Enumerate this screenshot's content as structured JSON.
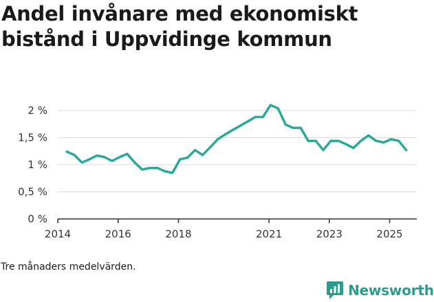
{
  "title": "Andel invånare med ekonomiskt bistånd i Uppvidinge kommun",
  "footnote": "Tre månaders medelvärden.",
  "brand": {
    "name": "Newsworthy",
    "icon": "bar-chart-logo-icon",
    "color": "#2a9d8f"
  },
  "colors": {
    "line": "#2aa89a",
    "grid": "#d9d9d9",
    "axis": "#333333"
  },
  "chart_data": {
    "type": "line",
    "title": "Andel invånare med ekonomiskt bistånd i Uppvidinge kommun",
    "xlabel": "",
    "ylabel": "",
    "xlim": [
      2014.0,
      2025.9
    ],
    "ylim": [
      0,
      2
    ],
    "yticks": [
      0,
      0.5,
      1,
      1.5,
      2
    ],
    "ytick_labels": [
      "0 %",
      "0,5 %",
      "1 %",
      "1,5 %",
      "2 %"
    ],
    "xticks": [
      2014,
      2016,
      2018,
      2021,
      2023,
      2025
    ],
    "xtick_labels": [
      "2014",
      "2016",
      "2018",
      "2021",
      "2023",
      "2025"
    ],
    "series": [
      {
        "name": "Andel invånare med ekonomiskt bistånd",
        "unit": "%",
        "x": [
          2014.3,
          2014.55,
          2014.8,
          2015.05,
          2015.3,
          2015.55,
          2015.8,
          2016.05,
          2016.3,
          2016.55,
          2016.8,
          2017.05,
          2017.3,
          2017.55,
          2017.8,
          2018.05,
          2018.3,
          2018.55,
          2018.8,
          2019.05,
          2019.3,
          2019.55,
          2019.8,
          2020.05,
          2020.3,
          2020.55,
          2020.8,
          2021.05,
          2021.3,
          2021.55,
          2021.8,
          2022.05,
          2022.3,
          2022.55,
          2022.8,
          2023.05,
          2023.3,
          2023.55,
          2023.8,
          2024.05,
          2024.3,
          2024.55,
          2024.8,
          2025.05,
          2025.3,
          2025.55
        ],
        "values": [
          1.24,
          1.18,
          1.04,
          1.1,
          1.17,
          1.14,
          1.07,
          1.14,
          1.2,
          1.04,
          0.91,
          0.94,
          0.94,
          0.88,
          0.85,
          1.1,
          1.13,
          1.27,
          1.18,
          1.32,
          1.47,
          1.56,
          1.64,
          1.72,
          1.8,
          1.88,
          1.88,
          2.1,
          2.04,
          1.74,
          1.68,
          1.68,
          1.44,
          1.44,
          1.27,
          1.44,
          1.44,
          1.38,
          1.31,
          1.44,
          1.54,
          1.44,
          1.41,
          1.47,
          1.44,
          1.27
        ]
      }
    ]
  }
}
